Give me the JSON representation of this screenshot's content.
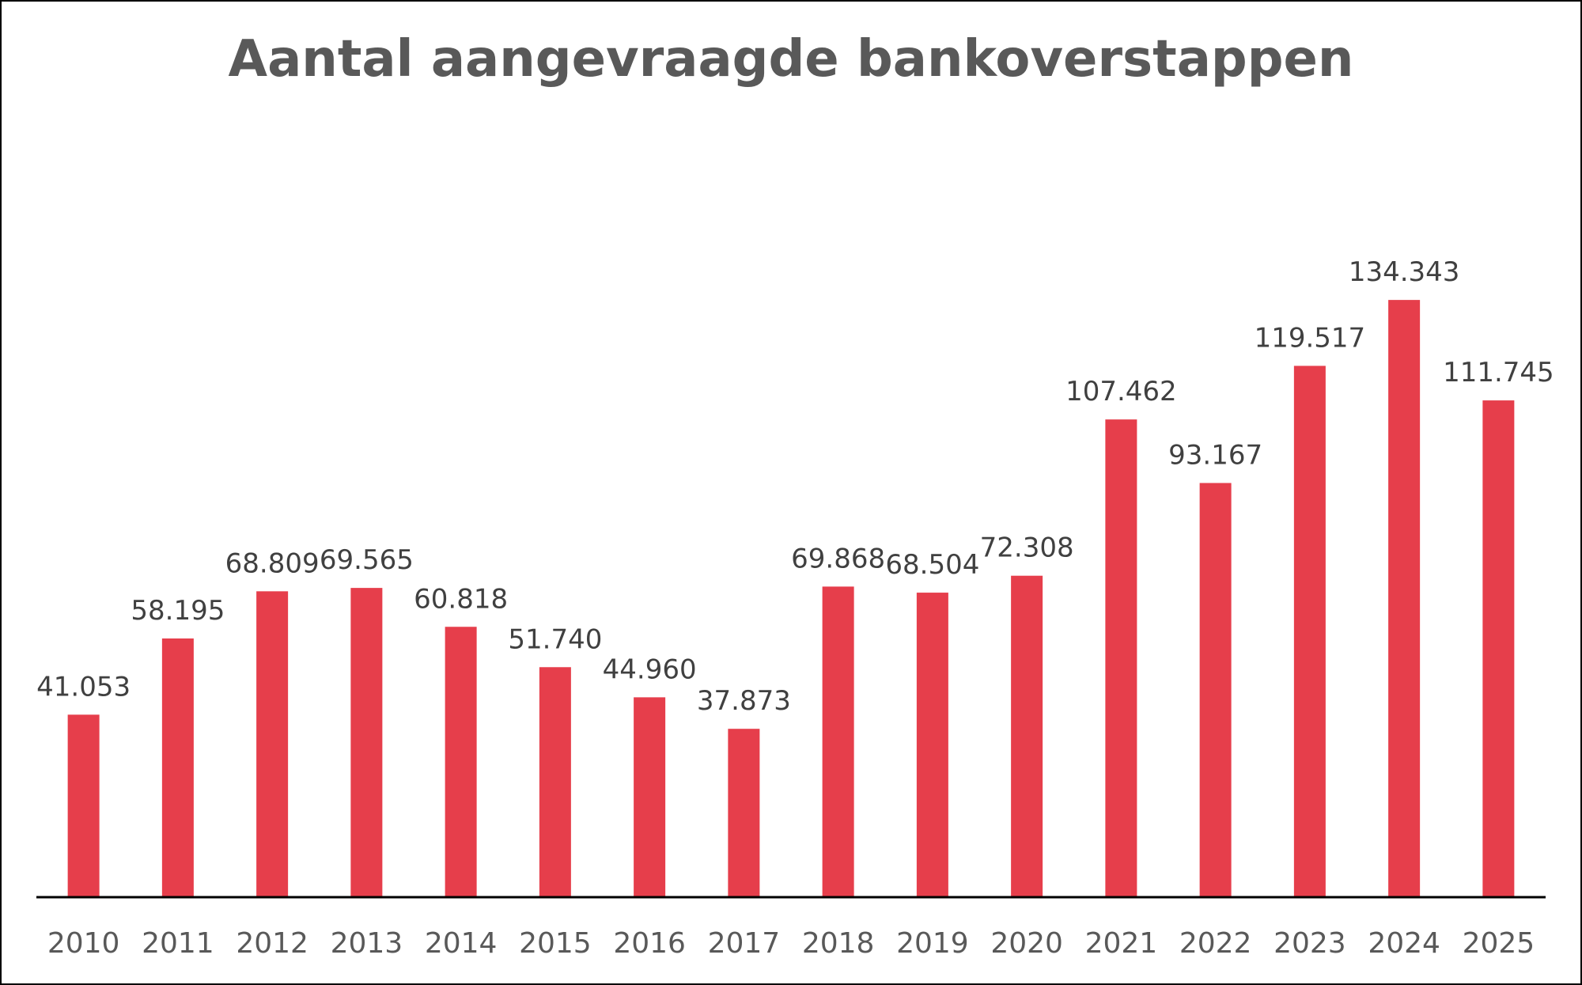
{
  "chart_data": {
    "type": "bar",
    "title": "Aantal aangevraagde bankoverstappen",
    "categories": [
      "2010",
      "2011",
      "2012",
      "2013",
      "2014",
      "2015",
      "2016",
      "2017",
      "2018",
      "2019",
      "2020",
      "2021",
      "2022",
      "2023",
      "2024",
      "2025"
    ],
    "values": [
      41053,
      58195,
      68809,
      69565,
      60818,
      51740,
      44960,
      37873,
      69868,
      68504,
      72308,
      107462,
      93167,
      119517,
      134343,
      111745
    ],
    "data_labels": [
      "41.053",
      "58.195",
      "68.809",
      "69.565",
      "60.818",
      "51.740",
      "44.960",
      "37.873",
      "69.868",
      "68.504",
      "72.308",
      "107.462",
      "93.167",
      "119.517",
      "134.343",
      "111.745"
    ],
    "ylim": [
      0,
      168000
    ],
    "bar_color": "#E63E4B",
    "grid": false,
    "legend": "none"
  }
}
